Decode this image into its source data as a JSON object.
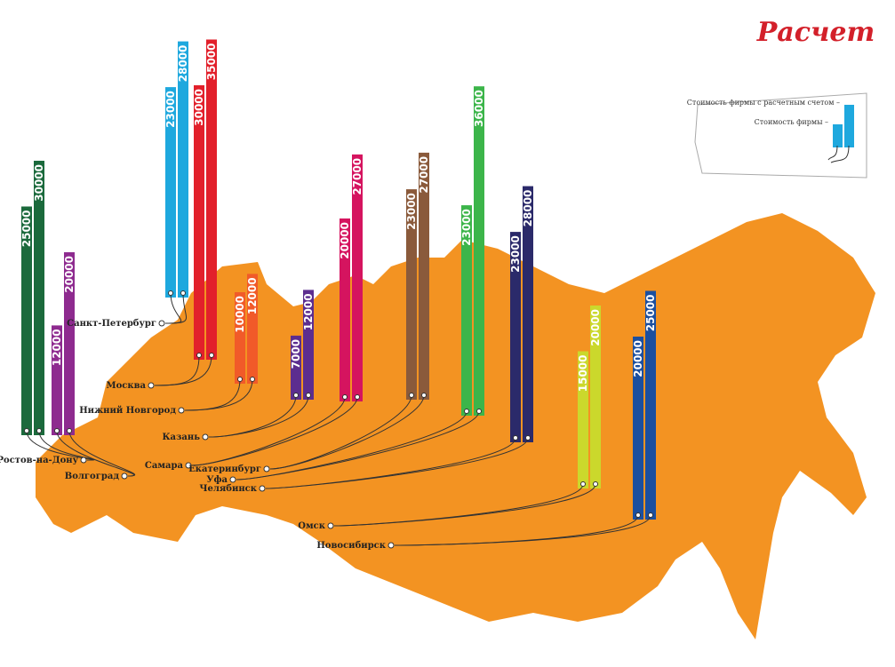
{
  "logo": "Расчет",
  "legend": {
    "account_label": "Стоимость фирмы с расчетным счетом –",
    "firm_label": "Стоимость фирмы –"
  },
  "cities": [
    {
      "name": "Ростов-на-Дону",
      "color": "#1b6a3c",
      "firm": 25000,
      "account": 30000
    },
    {
      "name": "Волгоград",
      "color": "#8e2b8f",
      "firm": 12000,
      "account": 20000
    },
    {
      "name": "Санкт-Петербург",
      "color": "#1ea8de",
      "firm": 23000,
      "account": 28000
    },
    {
      "name": "Москва",
      "color": "#e2202b",
      "firm": 30000,
      "account": 35000
    },
    {
      "name": "Нижний Новгород",
      "color": "#f15a29",
      "firm": 10000,
      "account": 12000
    },
    {
      "name": "Казань",
      "color": "#5c2d8f",
      "firm": 7000,
      "account": 12000
    },
    {
      "name": "Самара",
      "color": "#d5145f",
      "firm": 20000,
      "account": 27000
    },
    {
      "name": "Екатеринбург",
      "color": "#8a5a3b",
      "firm": 23000,
      "account": 27000
    },
    {
      "name": "Уфа",
      "color": "#3cb54a",
      "firm": 23000,
      "account": 36000
    },
    {
      "name": "Челябинск",
      "color": "#2b2a6a",
      "firm": 23000,
      "account": 28000
    },
    {
      "name": "Омск",
      "color": "#cbd82c",
      "firm": 15000,
      "account": 20000
    },
    {
      "name": "Новосибирск",
      "color": "#1b4f9f",
      "firm": 20000,
      "account": 25000
    }
  ]
}
